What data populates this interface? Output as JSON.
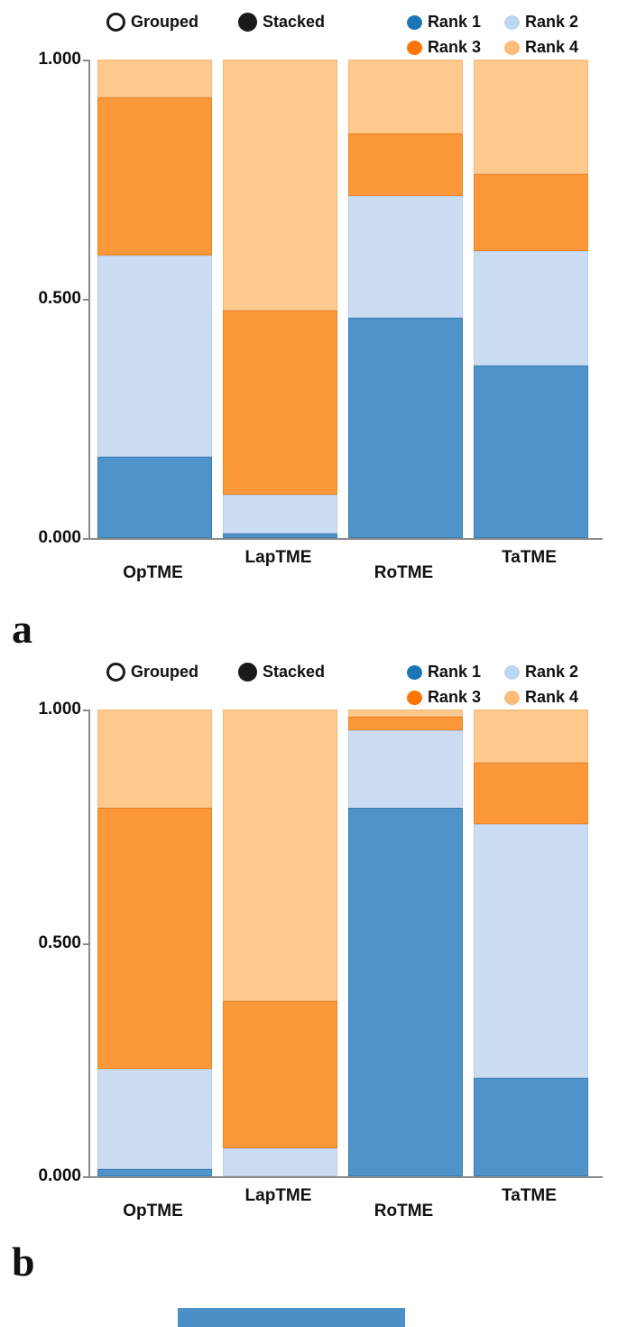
{
  "colors": {
    "rank1_bar": "#4e94cb",
    "rank1_border": "#3c7fb3",
    "rank1_dot": "#1b76b5",
    "rank2_bar": "#ccdcf3",
    "rank2_border": "#b7cdea",
    "rank2_dot": "#bed6f2",
    "rank3_bar": "#fb9839",
    "rank3_border": "#ea8427",
    "rank3_dot": "#fd7506",
    "rank4_bar": "#fdc98c",
    "rank4_border": "#f3b878",
    "rank4_dot": "#fcbd7b",
    "axis": "#8a8a8a"
  },
  "figures": [
    {
      "panel_label": "a",
      "mode_options": [
        {
          "label": "Grouped",
          "selected": false
        },
        {
          "label": "Stacked",
          "selected": true
        }
      ],
      "y_ticks": [
        "1.000",
        "0.500",
        "0.000"
      ]
    },
    {
      "panel_label": "b",
      "mode_options": [
        {
          "label": "Grouped",
          "selected": false
        },
        {
          "label": "Stacked",
          "selected": true
        }
      ],
      "y_ticks": [
        "1.000",
        "0.500",
        "0.000"
      ]
    }
  ],
  "legend_ranks": [
    "Rank 1",
    "Rank 2",
    "Rank 3",
    "Rank 4"
  ],
  "chart_data": [
    {
      "type": "bar",
      "stacked": true,
      "title": "",
      "xlabel": "",
      "ylabel": "",
      "ylim": [
        0,
        1
      ],
      "y_tick_values": [
        1.0,
        0.5,
        0.0
      ],
      "grid": false,
      "legend_position": "top-right",
      "categories": [
        "OpTME",
        "LapTME",
        "RoTME",
        "TaTME"
      ],
      "series": [
        {
          "name": "Rank 1",
          "values": [
            0.17,
            0.01,
            0.46,
            0.36
          ]
        },
        {
          "name": "Rank 2",
          "values": [
            0.42,
            0.08,
            0.255,
            0.24
          ]
        },
        {
          "name": "Rank 3",
          "values": [
            0.33,
            0.385,
            0.13,
            0.16
          ]
        },
        {
          "name": "Rank 4",
          "values": [
            0.08,
            0.525,
            0.155,
            0.24
          ]
        }
      ]
    },
    {
      "type": "bar",
      "stacked": true,
      "title": "",
      "xlabel": "",
      "ylabel": "",
      "ylim": [
        0,
        1
      ],
      "y_tick_values": [
        1.0,
        0.5,
        0.0
      ],
      "grid": false,
      "legend_position": "top-right",
      "categories": [
        "OpTME",
        "LapTME",
        "RoTME",
        "TaTME"
      ],
      "series": [
        {
          "name": "Rank 1",
          "values": [
            0.015,
            0.0,
            0.79,
            0.21
          ]
        },
        {
          "name": "Rank 2",
          "values": [
            0.215,
            0.06,
            0.165,
            0.545
          ]
        },
        {
          "name": "Rank 3",
          "values": [
            0.56,
            0.315,
            0.03,
            0.13
          ]
        },
        {
          "name": "Rank 4",
          "values": [
            0.21,
            0.625,
            0.015,
            0.115
          ]
        }
      ]
    }
  ]
}
